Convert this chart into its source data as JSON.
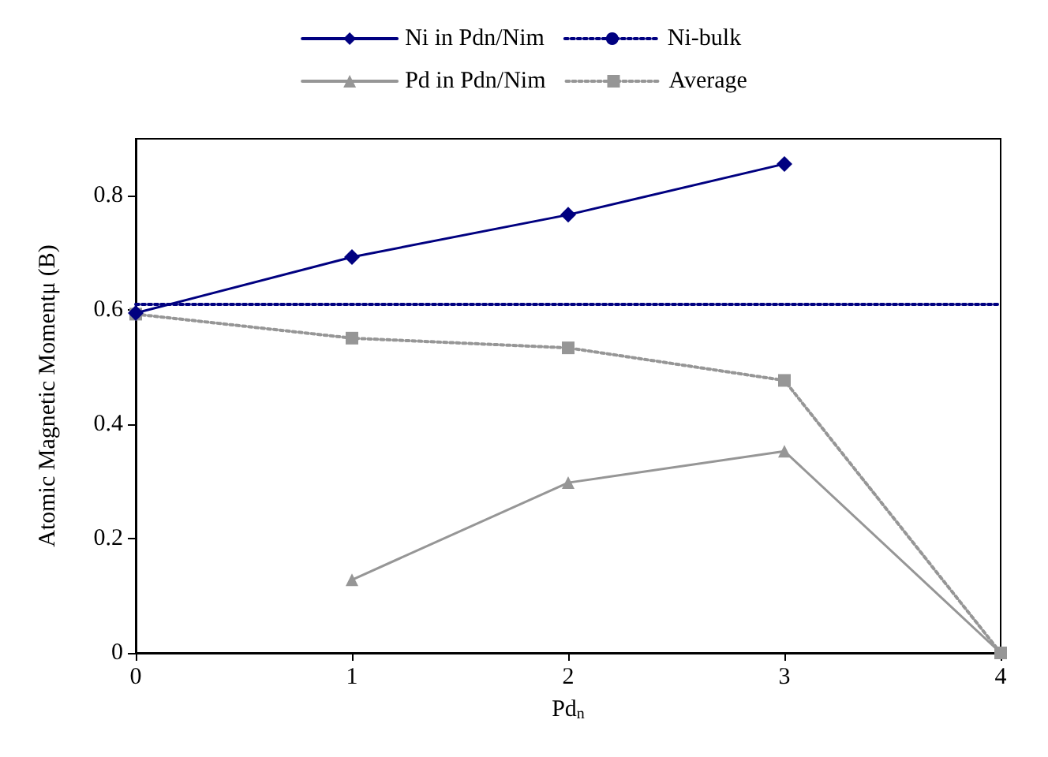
{
  "chart_data": {
    "type": "line",
    "xlabel": "Pd$_{n}$",
    "ylabel": "Atomic Magnetic Momentμ (B)",
    "xlim": [
      0,
      4
    ],
    "xticks": [
      0,
      1,
      2,
      3,
      4
    ],
    "ylim": [
      0,
      0.9
    ],
    "yticks": [
      0,
      0.2,
      0.4,
      0.6,
      0.8
    ],
    "grid": false,
    "legend": "top",
    "series": [
      {
        "name": "Ni in Pdn/Nim",
        "color": "#000080",
        "x": [
          0,
          1,
          2,
          3
        ],
        "values": [
          0.595,
          0.693,
          0.767,
          0.856
        ],
        "marker": "diamond",
        "line_style": "solid"
      },
      {
        "name": "Ni-bulk",
        "color": "#000080",
        "x": [
          0,
          4
        ],
        "values": [
          0.61,
          0.61
        ],
        "marker": "none",
        "line_style": "dotted"
      },
      {
        "name": "Pd in Pdn/Nim",
        "color": "#969696",
        "x": [
          1,
          2,
          3,
          4
        ],
        "values": [
          0.128,
          0.298,
          0.353,
          0
        ],
        "marker": "triangle",
        "line_style": "solid"
      },
      {
        "name": "Average",
        "color": "#969696",
        "x": [
          0,
          1,
          2,
          3,
          4
        ],
        "values": [
          0.593,
          0.551,
          0.534,
          0.477,
          0
        ],
        "marker": "square",
        "line_style": "dotted"
      }
    ]
  }
}
